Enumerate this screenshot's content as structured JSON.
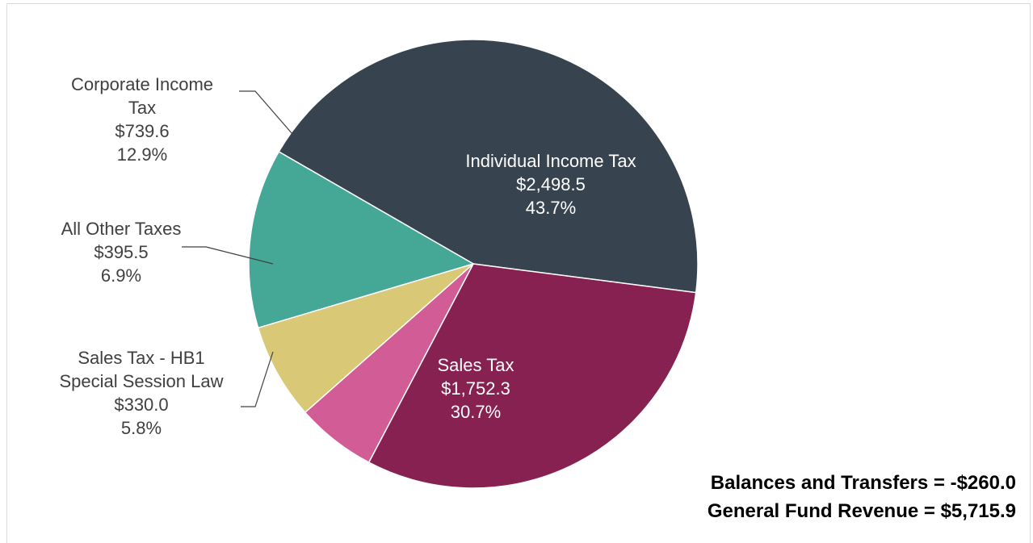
{
  "chart_data": {
    "type": "pie",
    "title": "",
    "unit_prefix": "$",
    "slices": [
      {
        "name": "Individual Income Tax",
        "value_label": "$2,498.5",
        "value": 2498.5,
        "percent_label": "43.7%",
        "percent": 43.7,
        "color": "#37444f",
        "label_color": "#ffffff",
        "label_lines": [
          "Individual Income Tax"
        ]
      },
      {
        "name": "Sales Tax",
        "value_label": "$1,752.3",
        "value": 1752.3,
        "percent_label": "30.7%",
        "percent": 30.7,
        "color": "#862151",
        "label_color": "#ffffff",
        "label_lines": [
          "Sales Tax"
        ]
      },
      {
        "name": "Sales Tax - HB1 Special Session Law",
        "value_label": "$330.0",
        "value": 330.0,
        "percent_label": "5.8%",
        "percent": 5.8,
        "color": "#d25c96",
        "label_color": "#404040",
        "label_lines": [
          "Sales Tax - HB1",
          "Special Session Law"
        ]
      },
      {
        "name": "All Other Taxes",
        "value_label": "$395.5",
        "value": 395.5,
        "percent_label": "6.9%",
        "percent": 6.9,
        "color": "#d9c876",
        "label_color": "#404040",
        "label_lines": [
          "All Other Taxes"
        ]
      },
      {
        "name": "Corporate Income Tax",
        "value_label": "$739.6",
        "value": 739.6,
        "percent_label": "12.9%",
        "percent": 12.9,
        "color": "#45a897",
        "label_color": "#404040",
        "label_lines": [
          "Corporate Income",
          "Tax"
        ]
      }
    ]
  },
  "footer": {
    "balances_transfers": "Balances and Transfers = -$260.0",
    "general_fund_revenue": "General Fund Revenue = $5,715.9"
  }
}
